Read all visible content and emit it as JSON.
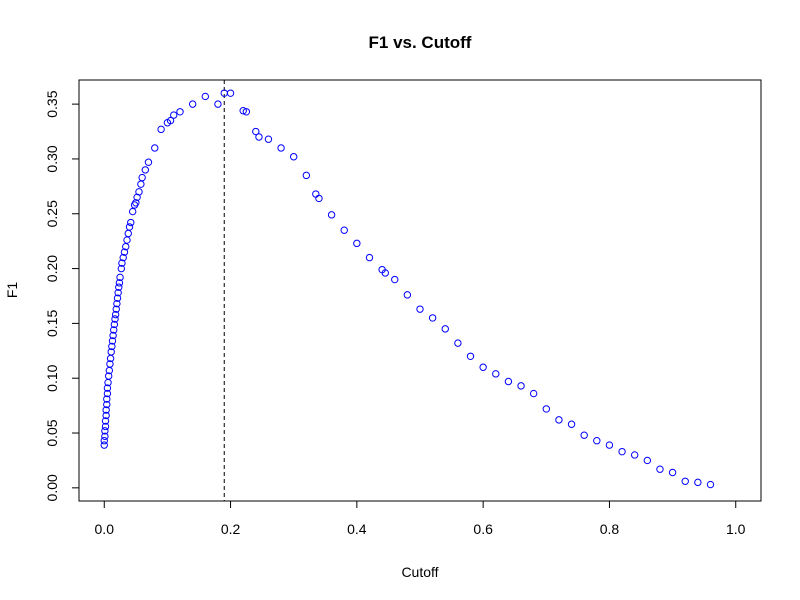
{
  "chart_data": {
    "type": "scatter",
    "title": "F1 vs. Cutoff",
    "xlabel": "Cutoff",
    "ylabel": "F1",
    "xlim": [
      -0.04,
      1.04
    ],
    "ylim": [
      -0.012,
      0.372
    ],
    "x_ticks": [
      0.0,
      0.2,
      0.4,
      0.6,
      0.8,
      1.0
    ],
    "x_tick_labels": [
      "0.0",
      "0.2",
      "0.4",
      "0.6",
      "0.8",
      "1.0"
    ],
    "y_ticks": [
      0.0,
      0.05,
      0.1,
      0.15,
      0.2,
      0.25,
      0.3,
      0.35
    ],
    "y_tick_labels": [
      "0.00",
      "0.05",
      "0.10",
      "0.15",
      "0.20",
      "0.25",
      "0.30",
      "0.35"
    ],
    "grid": false,
    "legend": "none",
    "marker_color": "#0000ff",
    "vline_x": 0.19,
    "x": [
      0.0,
      0.0,
      0.001,
      0.001,
      0.002,
      0.002,
      0.003,
      0.003,
      0.004,
      0.004,
      0.005,
      0.005,
      0.006,
      0.007,
      0.008,
      0.009,
      0.01,
      0.011,
      0.012,
      0.013,
      0.014,
      0.015,
      0.016,
      0.017,
      0.018,
      0.019,
      0.02,
      0.021,
      0.022,
      0.023,
      0.024,
      0.025,
      0.027,
      0.028,
      0.03,
      0.032,
      0.034,
      0.036,
      0.038,
      0.04,
      0.042,
      0.045,
      0.048,
      0.05,
      0.052,
      0.055,
      0.058,
      0.06,
      0.065,
      0.07,
      0.08,
      0.09,
      0.1,
      0.105,
      0.11,
      0.12,
      0.14,
      0.16,
      0.18,
      0.19,
      0.2,
      0.22,
      0.225,
      0.24,
      0.245,
      0.26,
      0.28,
      0.3,
      0.32,
      0.335,
      0.34,
      0.36,
      0.38,
      0.4,
      0.42,
      0.44,
      0.445,
      0.46,
      0.48,
      0.5,
      0.52,
      0.54,
      0.56,
      0.58,
      0.6,
      0.62,
      0.64,
      0.66,
      0.68,
      0.7,
      0.72,
      0.74,
      0.76,
      0.78,
      0.8,
      0.82,
      0.84,
      0.86,
      0.88,
      0.9,
      0.92,
      0.94,
      0.96
    ],
    "y": [
      0.039,
      0.043,
      0.047,
      0.052,
      0.056,
      0.061,
      0.066,
      0.071,
      0.076,
      0.081,
      0.086,
      0.091,
      0.096,
      0.102,
      0.107,
      0.113,
      0.118,
      0.124,
      0.129,
      0.134,
      0.139,
      0.144,
      0.149,
      0.154,
      0.158,
      0.163,
      0.168,
      0.173,
      0.178,
      0.183,
      0.187,
      0.192,
      0.2,
      0.205,
      0.21,
      0.215,
      0.22,
      0.226,
      0.232,
      0.238,
      0.242,
      0.252,
      0.258,
      0.26,
      0.265,
      0.27,
      0.277,
      0.283,
      0.29,
      0.297,
      0.31,
      0.327,
      0.333,
      0.335,
      0.34,
      0.343,
      0.35,
      0.357,
      0.35,
      0.36,
      0.36,
      0.344,
      0.343,
      0.325,
      0.32,
      0.318,
      0.31,
      0.302,
      0.285,
      0.268,
      0.264,
      0.249,
      0.235,
      0.223,
      0.21,
      0.199,
      0.196,
      0.19,
      0.176,
      0.163,
      0.155,
      0.145,
      0.132,
      0.12,
      0.11,
      0.104,
      0.097,
      0.093,
      0.086,
      0.072,
      0.062,
      0.058,
      0.048,
      0.043,
      0.039,
      0.033,
      0.03,
      0.025,
      0.017,
      0.014,
      0.006,
      0.005,
      0.003
    ]
  }
}
